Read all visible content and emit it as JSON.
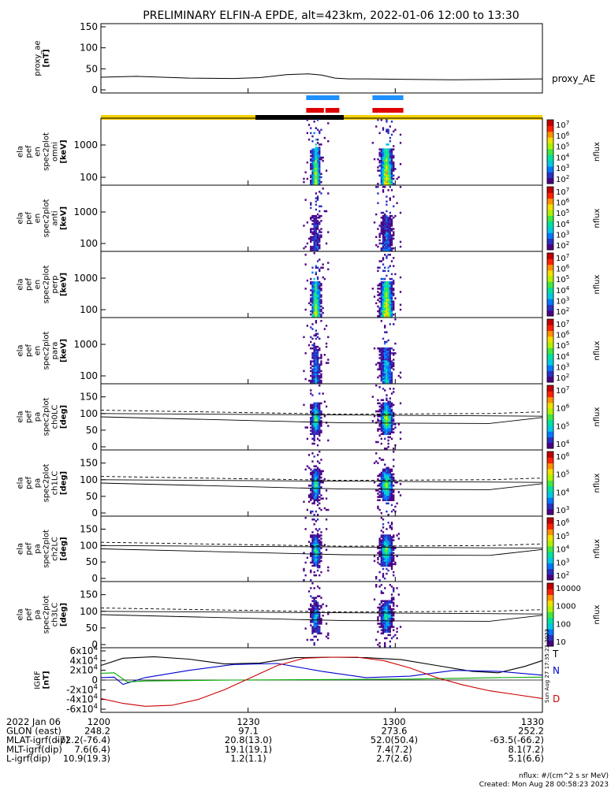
{
  "title": "PRELIMINARY ELFIN-A EPDE, alt=423km, 2022-01-06 12:00 to 13:30",
  "stamp": "Sun Aug 27 17:35:23 2023",
  "footer": {
    "units": "nflux: #/(cm^2 s sr MeV)",
    "created": "Created: Mon Aug 28 00:58:23 2023"
  },
  "colors": {
    "orbit_day": "#f5d000",
    "orbit_night": "#000000",
    "mode_bar_top": "#1e90ff",
    "mode_bar_bottom": "#e00000",
    "mode_bar_tick": "#ffffff",
    "grf_T": "#000000",
    "grf_N": "#0000cc",
    "grf_E": "#00aa00",
    "grf_D": "#cc0000"
  },
  "colormap": [
    "#ffffff",
    "#4b0082",
    "#2a30c0",
    "#0078ff",
    "#00c8e0",
    "#00e0a0",
    "#40e840",
    "#b0f000",
    "#f0e000",
    "#ff9000",
    "#ff2000",
    "#c00000"
  ],
  "chart_data": {
    "type": "line",
    "time_axis": {
      "ticks": [
        "1200",
        "1230",
        "1300",
        "1330"
      ],
      "range": [
        "2022-01-06 12:00",
        "2022-01-06 13:30"
      ]
    },
    "orbit_bar": {
      "segments": [
        {
          "state": "day",
          "start": 0,
          "end": 0.35
        },
        {
          "state": "night",
          "start": 0.35,
          "end": 0.55
        },
        {
          "state": "day",
          "start": 0.55,
          "end": 1
        }
      ]
    },
    "mode_bars": [
      {
        "start": 0.465,
        "end": 0.54
      },
      {
        "start": 0.615,
        "end": 0.685
      }
    ],
    "bursts": [
      {
        "center": 0.485,
        "width": 0.026
      },
      {
        "center": 0.645,
        "width": 0.034
      }
    ],
    "panels": [
      {
        "id": "proxy_ae",
        "kind": "line",
        "ylabel": [
          "proxy_ae",
          "[nT]"
        ],
        "ylim": [
          0,
          150
        ],
        "yticks": [
          "0",
          "50",
          "100",
          "150"
        ],
        "right_label": "proxy_AE",
        "x": [
          0,
          0.08,
          0.2,
          0.3,
          0.36,
          0.42,
          0.47,
          0.5,
          0.53,
          0.56,
          0.6,
          0.7,
          0.8,
          0.9,
          1
        ],
        "y": [
          30,
          32,
          28,
          27,
          29,
          36,
          38,
          35,
          28,
          26,
          26,
          25,
          24,
          25,
          26
        ]
      },
      {
        "id": "en_omni",
        "kind": "spec_en",
        "ylabel": [
          "ela",
          "pef",
          "en",
          "spec2plot",
          "omni",
          "[keV]"
        ],
        "yticks": [
          "100",
          "1000"
        ],
        "cbar_ticks": [
          "10^7",
          "10^6",
          "10^5",
          "10^4",
          "10^3",
          "10^2"
        ],
        "cbar_label": "nflux",
        "intensity": [
          0.75,
          0.85
        ]
      },
      {
        "id": "en_anti",
        "kind": "spec_en",
        "ylabel": [
          "ela",
          "pef",
          "en",
          "spec2plot",
          "anti",
          "[keV]"
        ],
        "yticks": [
          "100",
          "1000"
        ],
        "cbar_ticks": [
          "10^7",
          "10^6",
          "10^5",
          "10^4",
          "10^3",
          "10^2"
        ],
        "cbar_label": "nflux",
        "intensity": [
          0.25,
          0.3
        ]
      },
      {
        "id": "en_perp",
        "kind": "spec_en",
        "ylabel": [
          "ela",
          "pef",
          "en",
          "spec2plot",
          "perp",
          "[keV]"
        ],
        "yticks": [
          "100",
          "1000"
        ],
        "cbar_ticks": [
          "10^7",
          "10^6",
          "10^5",
          "10^4",
          "10^3",
          "10^2"
        ],
        "cbar_label": "nflux",
        "intensity": [
          0.75,
          0.85
        ]
      },
      {
        "id": "en_para",
        "kind": "spec_en",
        "ylabel": [
          "ela",
          "pef",
          "en",
          "spec2plot",
          "para",
          "[keV]"
        ],
        "yticks": [
          "100",
          "1000"
        ],
        "cbar_ticks": [
          "10^7",
          "10^6",
          "10^5",
          "10^4",
          "10^3",
          "10^2"
        ],
        "cbar_label": "nflux",
        "intensity": [
          0.35,
          0.45
        ]
      },
      {
        "id": "pa_ch0",
        "kind": "spec_pa",
        "ylabel": [
          "ela",
          "pef",
          "pa",
          "spec2plot",
          "ch0LC",
          "[deg]"
        ],
        "ylim": [
          0,
          180
        ],
        "yticks": [
          "0",
          "50",
          "100",
          "150"
        ],
        "cbar_ticks": [
          "10^7",
          "10^6",
          "10^5",
          "10^4"
        ],
        "cbar_label": "nflux",
        "intensity": [
          0.45,
          0.55
        ]
      },
      {
        "id": "pa_ch1",
        "kind": "spec_pa",
        "ylabel": [
          "ela",
          "pef",
          "pa",
          "spec2plot",
          "ch1LC",
          "[deg]"
        ],
        "ylim": [
          0,
          180
        ],
        "yticks": [
          "0",
          "50",
          "100",
          "150"
        ],
        "cbar_ticks": [
          "10^6",
          "10^5",
          "10^4",
          "10^3"
        ],
        "cbar_label": "nflux",
        "intensity": [
          0.42,
          0.5
        ]
      },
      {
        "id": "pa_ch2",
        "kind": "spec_pa",
        "ylabel": [
          "ela",
          "pef",
          "pa",
          "spec2plot",
          "ch2LC",
          "[deg]"
        ],
        "ylim": [
          0,
          180
        ],
        "yticks": [
          "0",
          "50",
          "100",
          "150"
        ],
        "cbar_ticks": [
          "10^6",
          "10^5",
          "10^4",
          "10^3",
          "10^2"
        ],
        "cbar_label": "nflux",
        "intensity": [
          0.4,
          0.48
        ]
      },
      {
        "id": "pa_ch3",
        "kind": "spec_pa",
        "ylabel": [
          "ela",
          "pef",
          "pa",
          "spec2plot",
          "ch3LC",
          "[deg]"
        ],
        "ylim": [
          0,
          180
        ],
        "yticks": [
          "0",
          "50",
          "100",
          "150"
        ],
        "cbar_ticks": [
          "10000",
          "1000",
          "100",
          "10"
        ],
        "cbar_label": "nflux",
        "intensity": [
          0.3,
          0.38
        ]
      },
      {
        "id": "igrf",
        "kind": "multiline",
        "ylabel": [
          "IGRF",
          "[nT]"
        ],
        "ylim": [
          -60000,
          60000
        ],
        "yticks": [
          "-6x10^4",
          "-4x10^4",
          "-2x10^4",
          "0",
          "2x10^4",
          "4x10^4",
          "6x10^4"
        ],
        "yvalues": [
          -60000,
          -40000,
          -20000,
          0,
          20000,
          40000,
          60000
        ],
        "series": [
          {
            "name": "T",
            "color": "#000000",
            "x": [
              0,
              0.05,
              0.12,
              0.2,
              0.28,
              0.36,
              0.44,
              0.52,
              0.6,
              0.68,
              0.76,
              0.84,
              0.9,
              0.96,
              1
            ],
            "y": [
              30000,
              45000,
              48000,
              43000,
              33000,
              35000,
              46000,
              47000,
              46000,
              42000,
              30000,
              18000,
              15000,
              28000,
              40000
            ]
          },
          {
            "name": "N",
            "color": "#0000cc",
            "x": [
              0,
              0.03,
              0.05,
              0.1,
              0.2,
              0.3,
              0.4,
              0.5,
              0.6,
              0.7,
              0.8,
              0.9,
              1
            ],
            "y": [
              5000,
              6000,
              -9000,
              5000,
              20000,
              32000,
              34000,
              18000,
              5000,
              8000,
              20000,
              18000,
              10000
            ]
          },
          {
            "name": "E",
            "color": "#00aa00",
            "x": [
              0,
              0.03,
              0.06,
              0.1,
              0.3,
              0.5,
              0.7,
              0.9,
              1
            ],
            "y": [
              14000,
              15000,
              -4000,
              -2000,
              0,
              1000,
              2000,
              5000,
              6000
            ]
          },
          {
            "name": "D",
            "color": "#cc0000",
            "x": [
              0,
              0.05,
              0.1,
              0.16,
              0.22,
              0.28,
              0.34,
              0.4,
              0.46,
              0.52,
              0.58,
              0.64,
              0.7,
              0.76,
              0.82,
              0.88,
              0.94,
              1
            ],
            "y": [
              -38000,
              -48000,
              -54000,
              -52000,
              -40000,
              -20000,
              5000,
              30000,
              45000,
              47000,
              47000,
              40000,
              25000,
              5000,
              -10000,
              -22000,
              -30000,
              -38000
            ]
          }
        ],
        "right_labels": [
          "T",
          "N",
          "D"
        ]
      }
    ]
  },
  "ephemeris": {
    "rows": [
      {
        "label": "2022 Jan 06",
        "values": [
          "1200",
          "1230",
          "1300",
          "1330"
        ]
      },
      {
        "label": "GLON (east)",
        "values": [
          "248.2",
          "97.1",
          "273.6",
          "252.2"
        ]
      },
      {
        "label": "MLAT-igrf(dip)",
        "values": [
          "-72.2(-76.4)",
          "20.8(13.0)",
          "52.0(50.4)",
          "-63.5(-66.2)"
        ]
      },
      {
        "label": "MLT-igrf(dip)",
        "values": [
          "7.6(6.4)",
          "19.1(19.1)",
          "7.4(7.2)",
          "8.1(7.2)"
        ]
      },
      {
        "label": "L-igrf(dip)",
        "values": [
          "10.9(19.3)",
          "1.2(1.1)",
          "2.7(2.6)",
          "5.1(6.6)"
        ]
      }
    ]
  }
}
